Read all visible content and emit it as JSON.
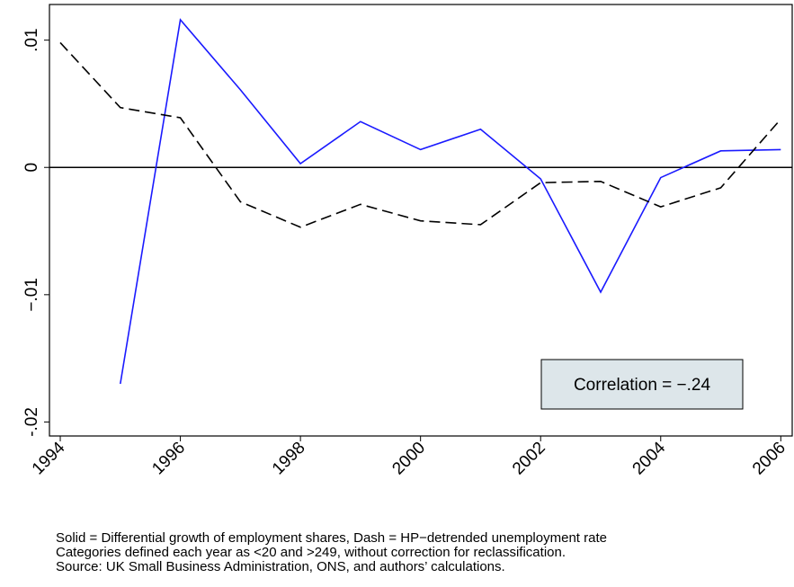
{
  "chart_data": {
    "type": "line",
    "x": [
      1994,
      1995,
      1996,
      1997,
      1998,
      1999,
      2000,
      2001,
      2002,
      2003,
      2004,
      2005,
      2006
    ],
    "series": [
      {
        "color": "#1a1aff",
        "dash": false,
        "values": [
          null,
          -0.017,
          0.0116,
          0.0061,
          0.0003,
          0.0036,
          0.0014,
          0.003,
          -0.0009,
          -0.0098,
          -0.0008,
          0.0013,
          0.0014
        ]
      },
      {
        "color": "#000000",
        "dash": true,
        "values": [
          0.0098,
          0.0047,
          0.0039,
          -0.0027,
          -0.0047,
          -0.0029,
          -0.0042,
          -0.0045,
          -0.0012,
          -0.0011,
          -0.0031,
          -0.0016,
          0.0038
        ]
      }
    ],
    "xlim": [
      1993.82,
      2006.19
    ],
    "xticks": [
      1994,
      1996,
      1998,
      2000,
      2002,
      2004,
      2006
    ],
    "ylim": [
      -0.0211,
      0.0128
    ],
    "yticks": [
      {
        "value": -0.02,
        "label": "-.02"
      },
      {
        "value": -0.01,
        "label": "−.01"
      },
      0,
      {
        "value": 0.01,
        "label": ".01"
      }
    ],
    "hline": 0,
    "annotation": "Correlation = −.24",
    "notes": [
      "Solid = Differential growth of employment shares, Dash = HP−detrended unemployment rate",
      "Categories defined each year as <20 and >249, without correction for reclassification.",
      "Source: UK Small Business Administration, ONS, and authors’ calculations."
    ]
  }
}
